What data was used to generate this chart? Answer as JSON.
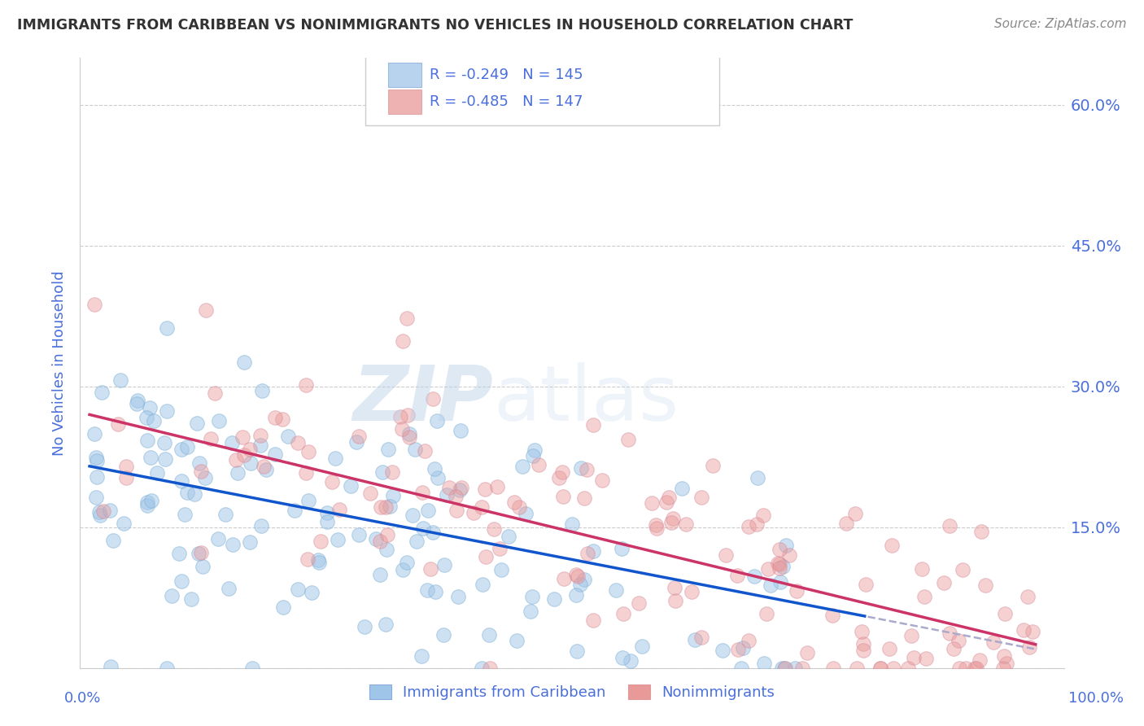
{
  "title": "IMMIGRANTS FROM CARIBBEAN VS NONIMMIGRANTS NO VEHICLES IN HOUSEHOLD CORRELATION CHART",
  "source": "Source: ZipAtlas.com",
  "ylabel": "No Vehicles in Household",
  "ytick_positions": [
    0.0,
    0.15,
    0.3,
    0.45,
    0.6
  ],
  "ytick_labels_right": [
    "",
    "15.0%",
    "30.0%",
    "45.0%",
    "60.0%"
  ],
  "xlim": [
    0.0,
    1.0
  ],
  "ylim": [
    0.0,
    0.65
  ],
  "legend1_label": "R = -0.249   N = 145",
  "legend2_label": "R = -0.485   N = 147",
  "legend_bottom_label1": "Immigrants from Caribbean",
  "legend_bottom_label2": "Nonimmigrants",
  "blue_color": "#a4c2f4",
  "pink_color": "#f4b8c1",
  "blue_face_color": "#9fc5e8",
  "pink_face_color": "#ea9999",
  "blue_line_color": "#1155cc",
  "pink_line_color": "#cc3366",
  "title_color": "#333333",
  "source_color": "#888888",
  "axis_label_color": "#4a6fdc",
  "tick_label_color": "#4a6fdc",
  "watermark_color": "#c9d9ef",
  "grid_color": "#cccccc",
  "blue_intercept": 0.215,
  "blue_slope": -0.195,
  "pink_intercept": 0.27,
  "pink_slope": -0.245
}
